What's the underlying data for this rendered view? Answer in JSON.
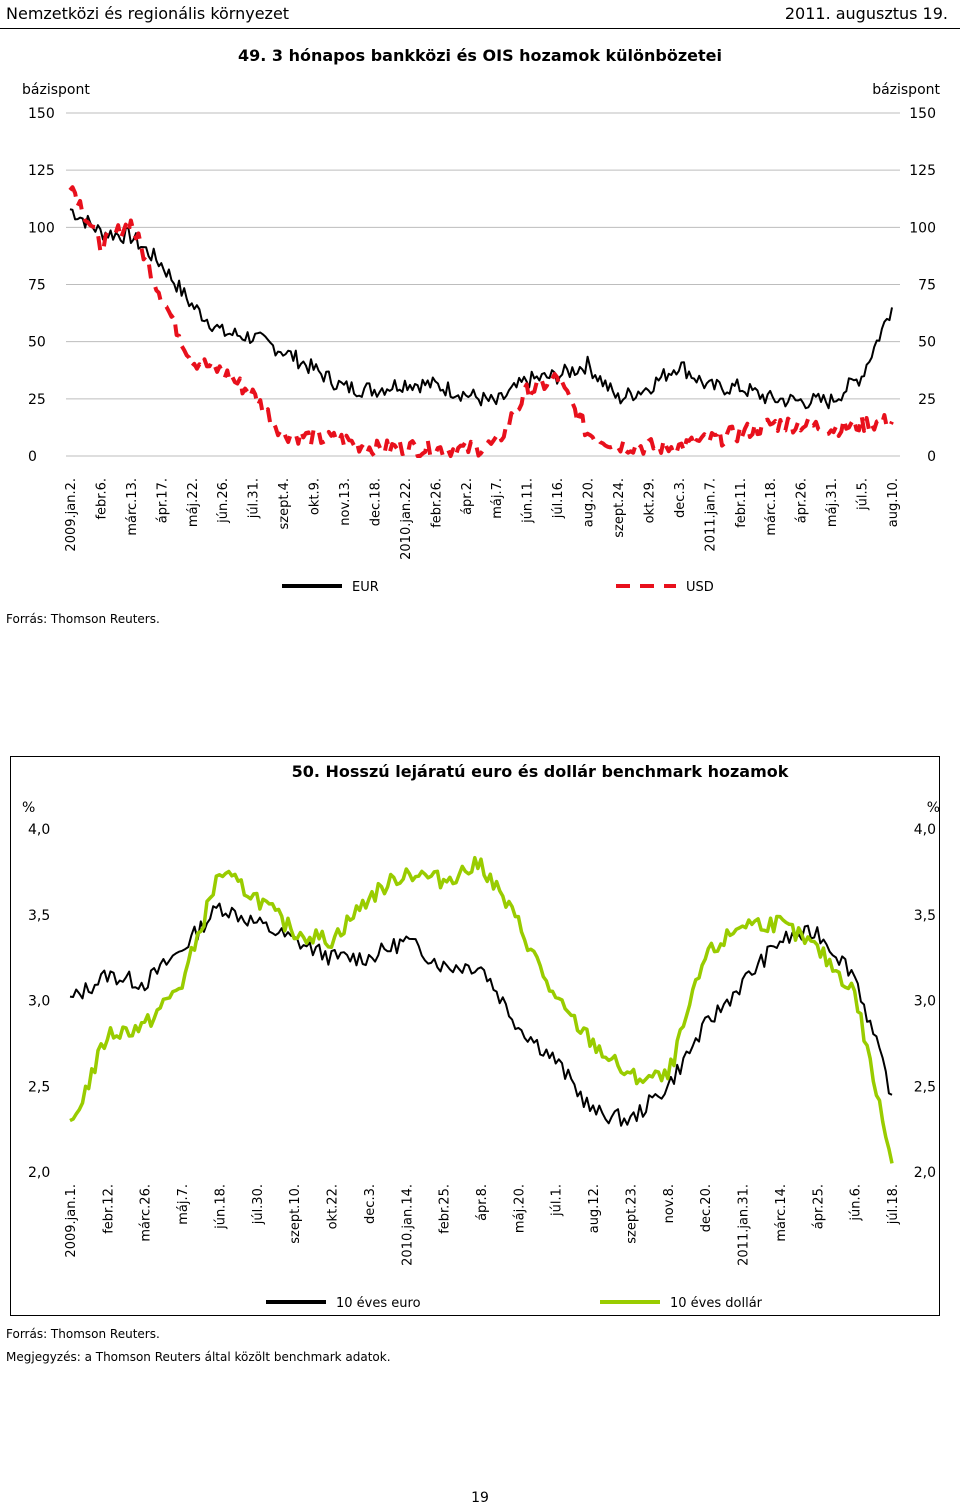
{
  "header": {
    "section": "Nemzetközi és regionális környezet",
    "date": "2011. augusztus 19."
  },
  "page_number": "19",
  "charts": [
    {
      "number_title": "49. 3 hónapos bankközi és OIS hozamok különbözetei",
      "unit_left": "bázispont",
      "unit_right": "bázispont",
      "source": "Forrás: Thomson Reuters."
    },
    {
      "number_title": "50. Hosszú lejáratú euro és dollár benchmark hozamok",
      "unit_left": "%",
      "unit_right": "%",
      "source": "Forrás: Thomson Reuters.",
      "note": "Megjegyzés: a Thomson Reuters által közölt benchmark adatok."
    }
  ],
  "chart_data": [
    {
      "type": "line",
      "title": "49. 3 hónapos bankközi és OIS hozamok különbözetei",
      "ylabel": "bázispont",
      "ylim": [
        0,
        150
      ],
      "yticks": [
        "0",
        "25",
        "50",
        "75",
        "100",
        "125",
        "150"
      ],
      "categories": [
        "2009.jan.2.",
        "febr.6.",
        "márc.13.",
        "ápr.17.",
        "máj.22.",
        "jún.26.",
        "júl.31.",
        "szept.4.",
        "okt.9.",
        "nov.13.",
        "dec.18.",
        "2010.jan.22.",
        "febr.26.",
        "ápr.2.",
        "máj.7.",
        "jún.11.",
        "júl.16.",
        "aug.20.",
        "szept.24.",
        "okt.29.",
        "dec.3.",
        "2011.jan.7.",
        "febr.11.",
        "márc.18.",
        "ápr.26.",
        "máj.31.",
        "júl.5.",
        "aug.10."
      ],
      "legend_position": "bottom",
      "grid": true,
      "series": [
        {
          "name": "EUR",
          "color": "#000000",
          "style": "solid",
          "values": [
            108,
            98,
            96,
            84,
            66,
            54,
            52,
            46,
            38,
            30,
            29,
            32,
            31,
            27,
            23,
            33,
            35,
            40,
            25,
            30,
            40,
            30,
            30,
            25,
            24,
            24,
            35,
            65
          ]
        },
        {
          "name": "USD",
          "color": "#e8101c",
          "style": "dashed",
          "values": [
            120,
            92,
            102,
            70,
            42,
            37,
            27,
            10,
            8,
            7,
            3,
            4,
            3,
            3,
            5,
            28,
            34,
            10,
            5,
            4,
            4,
            7,
            10,
            14,
            14,
            12,
            14,
            15
          ]
        }
      ]
    },
    {
      "type": "line",
      "title": "50. Hosszú lejáratú euro és dollár benchmark hozamok",
      "ylabel": "%",
      "ylim": [
        2.0,
        4.0
      ],
      "yticks": [
        "2,0",
        "2,5",
        "3,0",
        "3,5",
        "4,0"
      ],
      "categories": [
        "2009.jan.1.",
        "febr.12.",
        "márc.26.",
        "máj.7.",
        "jún.18.",
        "júl.30.",
        "szept.10.",
        "okt.22.",
        "dec.3.",
        "2010.jan.14.",
        "febr.25.",
        "ápr.8.",
        "máj.20.",
        "júl.1.",
        "aug.12.",
        "szept.23.",
        "nov.8.",
        "dec.20.",
        "2011.jan.31.",
        "márc.14.",
        "ápr.25.",
        "jún.6.",
        "júl.18."
      ],
      "legend_position": "bottom",
      "grid": false,
      "series": [
        {
          "name": "10 éves euro",
          "color": "#000000",
          "style": "solid",
          "values": [
            3.0,
            3.15,
            3.1,
            3.3,
            3.55,
            3.45,
            3.35,
            3.25,
            3.25,
            3.35,
            3.2,
            3.2,
            2.85,
            2.65,
            2.35,
            2.3,
            2.5,
            2.85,
            3.1,
            3.35,
            3.4,
            3.15,
            2.45
          ]
        },
        {
          "name": "10 éves dollár",
          "color": "#99cc00",
          "style": "solid",
          "values": [
            2.25,
            2.8,
            2.85,
            3.1,
            3.75,
            3.6,
            3.4,
            3.35,
            3.6,
            3.75,
            3.7,
            3.8,
            3.45,
            3.0,
            2.75,
            2.55,
            2.55,
            3.25,
            3.45,
            3.45,
            3.3,
            3.05,
            2.05
          ]
        }
      ]
    }
  ],
  "legends": [
    [
      {
        "label": "EUR"
      },
      {
        "label": "USD"
      }
    ],
    [
      {
        "label": "10 éves euro"
      },
      {
        "label": "10 éves dollár"
      }
    ]
  ]
}
